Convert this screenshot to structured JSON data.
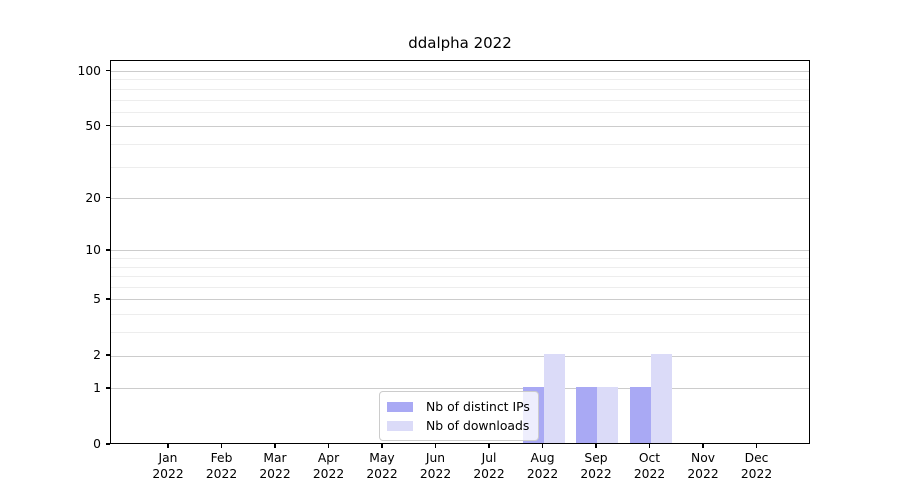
{
  "chart_data": {
    "type": "bar",
    "title": "ddalpha 2022",
    "categories": [
      "Jan",
      "Feb",
      "Mar",
      "Apr",
      "May",
      "Jun",
      "Jul",
      "Aug",
      "Sep",
      "Oct",
      "Nov",
      "Dec"
    ],
    "category_year": "2022",
    "series": [
      {
        "name": "Nb of distinct IPs",
        "color": "#a9a9f4",
        "values": [
          0,
          0,
          0,
          0,
          0,
          0,
          0,
          1,
          1,
          1,
          0,
          0
        ]
      },
      {
        "name": "Nb of downloads",
        "color": "#dbdbf8",
        "values": [
          0,
          0,
          0,
          0,
          0,
          0,
          0,
          2,
          1,
          2,
          0,
          0
        ]
      }
    ],
    "yscale": "log1p",
    "yticks": [
      0,
      1,
      2,
      5,
      10,
      20,
      50,
      100
    ],
    "yticks_minor": [
      3,
      4,
      6,
      7,
      8,
      9,
      30,
      40,
      60,
      70,
      80,
      90
    ],
    "ylim": [
      0,
      114
    ],
    "grid": "horizontal",
    "legend_position": "inside lower-center"
  },
  "colors": {
    "grid_major": "#cccccc",
    "grid_minor": "#ededed",
    "axis": "#000000"
  }
}
